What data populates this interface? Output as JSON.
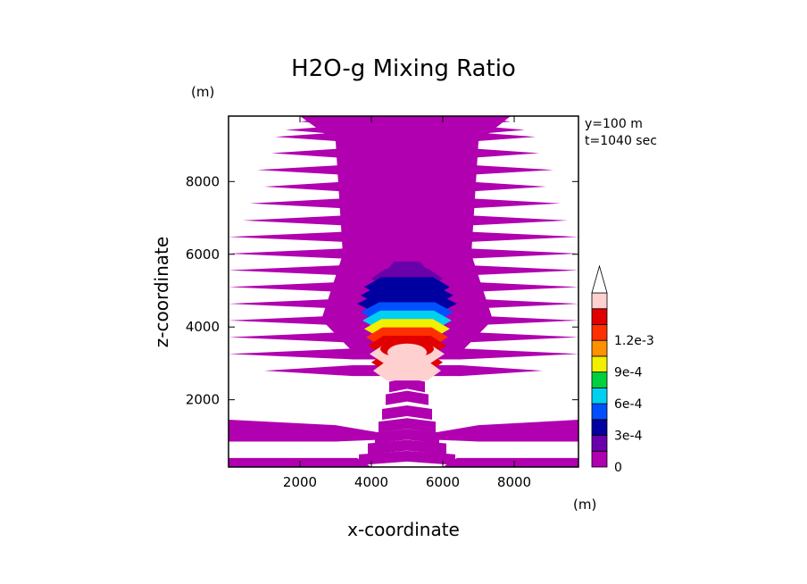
{
  "chart_data": {
    "type": "heatmap",
    "title": "H2O-g Mixing Ratio",
    "xlabel": "x-coordinate",
    "ylabel": "z-coordinate",
    "x_unit": "(m)",
    "y_unit": "(m)",
    "info": [
      "y=100 m",
      "t=1040 sec"
    ],
    "xlim": [
      0,
      9800
    ],
    "ylim": [
      150,
      9800
    ],
    "xticks": [
      2000,
      4000,
      6000,
      8000
    ],
    "yticks": [
      2000,
      4000,
      6000,
      8000
    ],
    "colorbar": {
      "levels": [
        0,
        0.00015,
        0.0003,
        0.00045,
        0.0006,
        0.00075,
        0.0009,
        0.00105,
        0.0012,
        0.00135
      ],
      "colors": [
        "#b000b0",
        "#6a00aa",
        "#0000a0",
        "#0050ff",
        "#00d0f0",
        "#00d040",
        "#f0f000",
        "#ff9000",
        "#ff3000",
        "#e00000",
        "#ffd0d0"
      ],
      "tick_labels": [
        "0",
        "3e-4",
        "6e-4",
        "9e-4",
        "1.2e-3"
      ]
    },
    "bands": [
      {
        "z": 9650,
        "x0": 2000,
        "x1": 7900
      },
      {
        "z": 9420,
        "x0": 1600,
        "x1": 8300
      },
      {
        "z": 9230,
        "x0": 1300,
        "x1": 8600
      },
      {
        "z": 8780,
        "x0": 1200,
        "x1": 8700
      },
      {
        "z": 8320,
        "x0": 800,
        "x1": 9100
      },
      {
        "z": 7860,
        "x0": 1000,
        "x1": 8900
      },
      {
        "z": 7400,
        "x0": 600,
        "x1": 9300
      },
      {
        "z": 6930,
        "x0": 400,
        "x1": 9500
      },
      {
        "z": 6480,
        "x0": 0,
        "x1": 9800
      },
      {
        "z": 6020,
        "x0": 0,
        "x1": 9800
      },
      {
        "z": 5560,
        "x0": 0,
        "x1": 9800
      },
      {
        "z": 5100,
        "x0": 0,
        "x1": 9800
      },
      {
        "z": 4640,
        "x0": 0,
        "x1": 9800
      },
      {
        "z": 4180,
        "x0": 0,
        "x1": 9800
      },
      {
        "z": 3720,
        "x0": 0,
        "x1": 9800
      },
      {
        "z": 3260,
        "x0": 0,
        "x1": 9800
      },
      {
        "z": 2800,
        "x0": 1000,
        "x1": 8800
      }
    ],
    "core": [
      {
        "z": 5530,
        "w": 1200,
        "level": 1
      },
      {
        "z": 5330,
        "w": 2000,
        "level": 1
      },
      {
        "z": 5100,
        "w": 2400,
        "level": 2
      },
      {
        "z": 4870,
        "w": 2600,
        "level": 2
      },
      {
        "z": 4640,
        "w": 2800,
        "level": 2
      },
      {
        "z": 4410,
        "w": 2600,
        "level": 3
      },
      {
        "z": 4180,
        "w": 2500,
        "level": 4
      },
      {
        "z": 3950,
        "w": 2400,
        "level": 6
      },
      {
        "z": 3720,
        "w": 2300,
        "level": 8
      },
      {
        "z": 3490,
        "w": 2200,
        "level": 9
      },
      {
        "z": 3260,
        "w": 2100,
        "level": 10
      },
      {
        "z": 3030,
        "w": 2000,
        "level": 9
      },
      {
        "z": 2800,
        "w": 1900,
        "level": 10
      }
    ],
    "lower_features": [
      {
        "z": 2350,
        "w": 1000
      },
      {
        "z": 2000,
        "w": 1200
      },
      {
        "z": 1600,
        "w": 1400
      },
      {
        "z": 1250,
        "w": 1600
      },
      {
        "z": 950,
        "w": 1800
      },
      {
        "z": 650,
        "w": 2200
      },
      {
        "z": 350,
        "w": 2700
      }
    ]
  }
}
